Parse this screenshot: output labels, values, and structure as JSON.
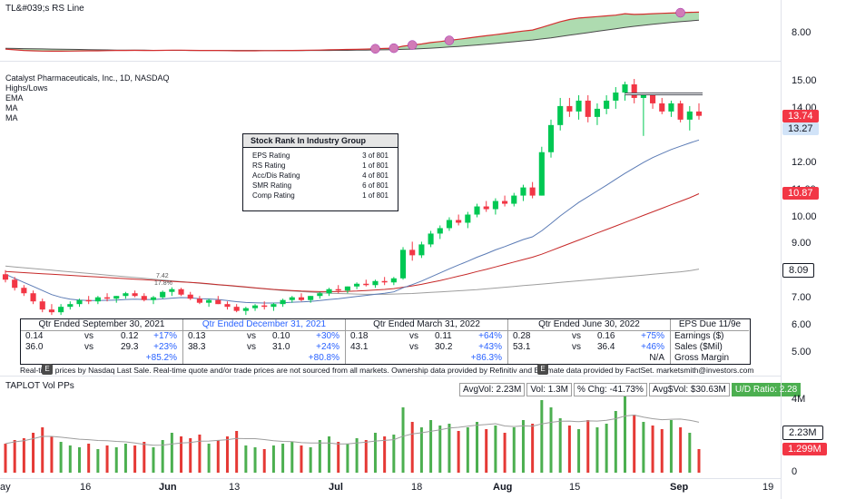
{
  "rs_pane": {
    "title": "TL&#039;s RS Line",
    "axis_label": "8.00"
  },
  "main_pane": {
    "legend": [
      "Catalyst Pharmaceuticals, Inc., 1D, NASDAQ",
      "Highs/Lows",
      "EMA",
      "MA",
      "MA"
    ],
    "annotations": [
      "7.42",
      "17.8%"
    ]
  },
  "rank_box": {
    "title": "Stock Rank In Industry Group",
    "rows": [
      {
        "label": "EPS Rating",
        "value": "3 of 801"
      },
      {
        "label": "RS Rating",
        "value": "1 of 801"
      },
      {
        "label": "Acc/Dis Rating",
        "value": "4 of 801"
      },
      {
        "label": "SMR Rating",
        "value": "6 of 801"
      },
      {
        "label": "Comp Rating",
        "value": "1 of 801"
      }
    ]
  },
  "fundamentals": {
    "quarters": [
      {
        "header": "Qtr Ended September 30, 2021",
        "header_blue": false,
        "eps": [
          "0.14",
          "vs",
          "0.12",
          "+17%"
        ],
        "sales": [
          "36.0",
          "vs",
          "29.3",
          "+23%"
        ],
        "margin": "+85.2%"
      },
      {
        "header": "Qtr Ended December 31, 2021",
        "header_blue": true,
        "eps": [
          "0.13",
          "vs",
          "0.10",
          "+30%"
        ],
        "sales": [
          "38.3",
          "vs",
          "31.0",
          "+24%"
        ],
        "margin": "+80.8%"
      },
      {
        "header": "Qtr Ended March 31, 2022",
        "header_blue": false,
        "eps": [
          "0.18",
          "vs",
          "0.11",
          "+64%"
        ],
        "sales": [
          "43.1",
          "vs",
          "30.2",
          "+43%"
        ],
        "margin": "+86.3%"
      },
      {
        "header": "Qtr Ended June 30, 2022",
        "header_blue": false,
        "eps": [
          "0.28",
          "vs",
          "0.16",
          "+75%"
        ],
        "sales": [
          "53.1",
          "vs",
          "36.4",
          "+46%"
        ],
        "margin": "N/A"
      }
    ],
    "eps_due": "EPS Due 11/9e",
    "row_labels": [
      "Earnings ($)",
      "Sales ($Mil)",
      "Gross Margin"
    ]
  },
  "disclaimer": "Real-time prices by Nasdaq Last Sale. Real-time quote and/or trade prices are not sourced from all markets. Ownership data provided by Refinitiv and Estimate data provided by FactSet. marketsmith@investors.com",
  "disclaimer_badges": [
    "E",
    "E"
  ],
  "volume_pane": {
    "title": "TAPLOT Vol PPs",
    "badges": [
      "AvgVol: 2.23M",
      "Vol: 1.3M",
      "% Chg: -41.73%",
      "Avg$Vol: $30.63M",
      "U/D Ratio: 2.28"
    ]
  },
  "price_axis": {
    "ticks": [
      "15.00",
      "14.00",
      "12.00",
      "11.00",
      "10.00",
      "9.00",
      "8.00",
      "7.00",
      "6.00",
      "5.00"
    ],
    "tags": [
      {
        "value": "13.74",
        "color": "#f23645"
      },
      {
        "value": "13.27",
        "color": "#d1e3f8"
      },
      {
        "value": "10.87",
        "color": "#f23645"
      },
      {
        "value": "8.09",
        "color": "#ffffff"
      }
    ]
  },
  "volume_axis": {
    "ticks": [
      "4M",
      "2M",
      "0"
    ],
    "tags": [
      {
        "value": "2.23M",
        "color": "#ffffff"
      },
      {
        "value": "1.299M",
        "color": "#f23645"
      }
    ]
  },
  "time_axis": [
    "ay",
    "16",
    "Jun",
    "13",
    "Jul",
    "18",
    "Aug",
    "15",
    "Sep",
    "19"
  ],
  "chart_data": {
    "type": "candlestick",
    "y_range": [
      4.5,
      15.3
    ],
    "ohlc": [
      [
        7.9,
        8.05,
        7.6,
        7.7
      ],
      [
        7.7,
        7.8,
        7.3,
        7.4
      ],
      [
        7.4,
        7.5,
        7.1,
        7.2
      ],
      [
        7.2,
        7.3,
        6.8,
        6.9
      ],
      [
        6.9,
        7.0,
        6.5,
        6.6
      ],
      [
        6.6,
        6.8,
        6.4,
        6.5
      ],
      [
        6.5,
        6.8,
        6.4,
        6.7
      ],
      [
        6.7,
        6.9,
        6.6,
        6.8
      ],
      [
        6.8,
        7.0,
        6.7,
        6.95
      ],
      [
        6.95,
        7.1,
        6.8,
        6.9
      ],
      [
        6.9,
        7.1,
        6.8,
        7.05
      ],
      [
        7.05,
        7.2,
        6.9,
        7.0
      ],
      [
        7.0,
        7.1,
        6.85,
        7.1
      ],
      [
        7.1,
        7.25,
        7.0,
        7.2
      ],
      [
        7.2,
        7.3,
        7.05,
        7.1
      ],
      [
        7.1,
        7.2,
        6.9,
        6.95
      ],
      [
        6.95,
        7.1,
        6.8,
        7.05
      ],
      [
        7.05,
        7.3,
        7.0,
        7.25
      ],
      [
        7.25,
        7.42,
        7.1,
        7.35
      ],
      [
        7.35,
        7.4,
        7.1,
        7.15
      ],
      [
        7.15,
        7.25,
        6.95,
        7.0
      ],
      [
        7.0,
        7.1,
        6.8,
        6.85
      ],
      [
        6.85,
        7.0,
        6.7,
        6.95
      ],
      [
        6.95,
        7.1,
        6.8,
        6.8
      ],
      [
        6.8,
        6.9,
        6.6,
        6.7
      ],
      [
        6.7,
        6.8,
        6.5,
        6.55
      ],
      [
        6.55,
        6.7,
        6.4,
        6.65
      ],
      [
        6.65,
        6.8,
        6.55,
        6.75
      ],
      [
        6.75,
        6.9,
        6.6,
        6.7
      ],
      [
        6.7,
        6.85,
        6.55,
        6.8
      ],
      [
        6.8,
        7.0,
        6.7,
        6.95
      ],
      [
        6.95,
        7.1,
        6.85,
        7.05
      ],
      [
        7.05,
        7.2,
        6.9,
        6.95
      ],
      [
        6.95,
        7.1,
        6.85,
        7.1
      ],
      [
        7.1,
        7.25,
        7.0,
        7.2
      ],
      [
        7.2,
        7.4,
        7.1,
        7.35
      ],
      [
        7.35,
        7.5,
        7.2,
        7.3
      ],
      [
        7.3,
        7.45,
        7.2,
        7.45
      ],
      [
        7.45,
        7.6,
        7.35,
        7.55
      ],
      [
        7.55,
        7.7,
        7.45,
        7.5
      ],
      [
        7.5,
        7.7,
        7.4,
        7.65
      ],
      [
        7.65,
        7.8,
        7.5,
        7.6
      ],
      [
        7.6,
        7.8,
        7.5,
        7.75
      ],
      [
        7.75,
        8.9,
        7.7,
        8.8
      ],
      [
        8.8,
        9.1,
        8.4,
        8.6
      ],
      [
        8.6,
        9.1,
        8.5,
        9.0
      ],
      [
        9.0,
        9.5,
        8.9,
        9.4
      ],
      [
        9.4,
        9.7,
        9.2,
        9.6
      ],
      [
        9.6,
        10.0,
        9.5,
        9.9
      ],
      [
        9.9,
        10.1,
        9.7,
        9.8
      ],
      [
        9.8,
        10.2,
        9.6,
        10.1
      ],
      [
        10.1,
        10.5,
        10.0,
        10.4
      ],
      [
        10.4,
        10.6,
        10.2,
        10.3
      ],
      [
        10.3,
        10.7,
        10.1,
        10.6
      ],
      [
        10.6,
        10.8,
        10.4,
        10.5
      ],
      [
        10.5,
        10.9,
        10.4,
        10.8
      ],
      [
        10.8,
        11.2,
        10.6,
        11.1
      ],
      [
        11.1,
        11.3,
        10.7,
        10.8
      ],
      [
        10.8,
        12.6,
        10.8,
        12.4
      ],
      [
        12.4,
        13.6,
        12.2,
        13.4
      ],
      [
        13.4,
        14.4,
        13.2,
        14.1
      ],
      [
        14.1,
        14.4,
        13.7,
        13.9
      ],
      [
        13.9,
        14.5,
        13.6,
        14.3
      ],
      [
        14.3,
        14.5,
        13.5,
        13.7
      ],
      [
        13.7,
        14.2,
        13.4,
        14.0
      ],
      [
        14.0,
        14.5,
        13.8,
        14.3
      ],
      [
        14.3,
        14.8,
        14.0,
        14.6
      ],
      [
        14.6,
        15.0,
        14.3,
        14.9
      ],
      [
        14.9,
        15.1,
        14.2,
        14.4
      ],
      [
        14.4,
        14.6,
        13.0,
        14.5
      ],
      [
        14.5,
        14.6,
        14.0,
        14.2
      ],
      [
        14.2,
        14.4,
        13.8,
        13.9
      ],
      [
        13.9,
        14.3,
        13.7,
        14.2
      ],
      [
        14.2,
        14.3,
        13.5,
        13.6
      ],
      [
        13.6,
        14.1,
        13.2,
        13.9
      ],
      [
        13.9,
        14.2,
        13.6,
        13.74
      ]
    ],
    "volume": [
      1.6,
      1.8,
      1.9,
      2.2,
      2.5,
      2.0,
      1.7,
      1.5,
      1.4,
      1.6,
      1.3,
      1.5,
      1.4,
      1.6,
      1.5,
      1.7,
      1.4,
      1.8,
      2.2,
      2.0,
      1.9,
      2.1,
      1.6,
      1.8,
      2.0,
      2.3,
      1.5,
      1.4,
      1.3,
      1.5,
      1.6,
      1.7,
      1.5,
      1.4,
      1.8,
      2.0,
      1.7,
      1.6,
      1.9,
      1.8,
      2.2,
      2.0,
      2.1,
      3.6,
      2.8,
      2.5,
      2.9,
      2.6,
      2.7,
      2.3,
      2.5,
      2.8,
      2.4,
      2.6,
      2.2,
      2.5,
      2.9,
      2.7,
      4.0,
      3.6,
      3.0,
      2.6,
      2.4,
      2.9,
      2.5,
      2.7,
      3.4,
      4.6,
      3.2,
      2.8,
      2.6,
      2.4,
      2.9,
      2.5,
      2.2,
      1.3
    ],
    "vol_range": [
      0,
      5.0
    ],
    "ema": [
      7.9,
      7.75,
      7.6,
      7.45,
      7.3,
      7.15,
      7.05,
      6.98,
      6.95,
      6.93,
      6.93,
      6.94,
      6.95,
      6.97,
      6.98,
      6.97,
      6.97,
      6.99,
      7.02,
      7.04,
      7.03,
      7.0,
      6.99,
      6.97,
      6.93,
      6.89,
      6.86,
      6.85,
      6.84,
      6.84,
      6.85,
      6.87,
      6.88,
      6.9,
      6.93,
      6.97,
      7.0,
      7.04,
      7.08,
      7.12,
      7.16,
      7.2,
      7.25,
      7.4,
      7.52,
      7.65,
      7.8,
      7.95,
      8.1,
      8.24,
      8.38,
      8.53,
      8.66,
      8.8,
      8.92,
      9.05,
      9.18,
      9.28,
      9.5,
      9.77,
      10.05,
      10.3,
      10.55,
      10.76,
      10.97,
      11.18,
      11.4,
      11.62,
      11.82,
      12.02,
      12.2,
      12.35,
      12.5,
      12.62,
      12.74,
      12.85
    ],
    "ma_red": [
      8.0,
      7.98,
      7.96,
      7.94,
      7.92,
      7.9,
      7.88,
      7.86,
      7.84,
      7.82,
      7.8,
      7.78,
      7.76,
      7.74,
      7.72,
      7.7,
      7.68,
      7.66,
      7.64,
      7.62,
      7.6,
      7.58,
      7.55,
      7.52,
      7.49,
      7.46,
      7.43,
      7.4,
      7.37,
      7.34,
      7.32,
      7.3,
      7.28,
      7.27,
      7.26,
      7.26,
      7.26,
      7.27,
      7.28,
      7.3,
      7.32,
      7.34,
      7.37,
      7.42,
      7.47,
      7.53,
      7.6,
      7.67,
      7.75,
      7.83,
      7.91,
      8.0,
      8.08,
      8.17,
      8.26,
      8.35,
      8.44,
      8.53,
      8.64,
      8.77,
      8.9,
      9.03,
      9.16,
      9.29,
      9.42,
      9.55,
      9.68,
      9.81,
      9.94,
      10.07,
      10.2,
      10.33,
      10.46,
      10.59,
      10.72,
      10.87
    ],
    "ma_gray": [
      8.2,
      8.17,
      8.14,
      8.11,
      8.08,
      8.05,
      8.02,
      7.99,
      7.96,
      7.93,
      7.9,
      7.87,
      7.84,
      7.81,
      7.78,
      7.75,
      7.72,
      7.69,
      7.66,
      7.63,
      7.6,
      7.57,
      7.54,
      7.51,
      7.48,
      7.45,
      7.42,
      7.39,
      7.36,
      7.33,
      7.3,
      7.28,
      7.26,
      7.24,
      7.22,
      7.2,
      7.19,
      7.18,
      7.17,
      7.16,
      7.16,
      7.16,
      7.17,
      7.18,
      7.19,
      7.21,
      7.23,
      7.25,
      7.27,
      7.29,
      7.31,
      7.33,
      7.36,
      7.39,
      7.42,
      7.45,
      7.48,
      7.51,
      7.54,
      7.57,
      7.6,
      7.63,
      7.66,
      7.69,
      7.72,
      7.75,
      7.78,
      7.81,
      7.84,
      7.87,
      7.9,
      7.93,
      7.96,
      7.99,
      8.03,
      8.09
    ],
    "rs_line": [
      2.1,
      2.05,
      2.0,
      1.98,
      1.96,
      1.95,
      1.95,
      1.96,
      1.97,
      1.98,
      1.98,
      1.99,
      2.0,
      2.0,
      2.01,
      2.0,
      2.0,
      2.01,
      2.02,
      2.02,
      2.01,
      2.0,
      2.0,
      2.0,
      1.99,
      1.98,
      1.98,
      1.98,
      1.99,
      1.99,
      2.0,
      2.0,
      2.01,
      2.02,
      2.03,
      2.05,
      2.06,
      2.07,
      2.08,
      2.1,
      2.12,
      2.14,
      2.16,
      2.3,
      2.38,
      2.45,
      2.55,
      2.62,
      2.7,
      2.78,
      2.86,
      2.95,
      3.02,
      3.1,
      3.18,
      3.27,
      3.35,
      3.42,
      3.6,
      3.8,
      4.0,
      4.15,
      4.25,
      4.3,
      4.35,
      4.4,
      4.45,
      4.55,
      4.5,
      4.52,
      4.55,
      4.58,
      4.6,
      4.62,
      4.65,
      4.66
    ],
    "rs_ma": [
      2.15,
      2.14,
      2.13,
      2.12,
      2.11,
      2.1,
      2.09,
      2.08,
      2.07,
      2.06,
      2.05,
      2.04,
      2.03,
      2.03,
      2.02,
      2.02,
      2.01,
      2.01,
      2.01,
      2.01,
      2.0,
      2.0,
      2.0,
      2.0,
      2.0,
      2.0,
      2.0,
      2.0,
      1.99,
      1.99,
      1.99,
      1.99,
      1.99,
      2.0,
      2.0,
      2.0,
      2.01,
      2.01,
      2.02,
      2.03,
      2.04,
      2.05,
      2.06,
      2.08,
      2.1,
      2.13,
      2.16,
      2.2,
      2.24,
      2.28,
      2.33,
      2.38,
      2.43,
      2.49,
      2.55,
      2.61,
      2.67,
      2.73,
      2.8,
      2.88,
      2.97,
      3.06,
      3.15,
      3.24,
      3.33,
      3.42,
      3.51,
      3.6,
      3.68,
      3.75,
      3.82,
      3.88,
      3.94,
      4.0,
      4.05,
      4.1
    ],
    "rs_range": [
      1.6,
      5.0
    ]
  }
}
